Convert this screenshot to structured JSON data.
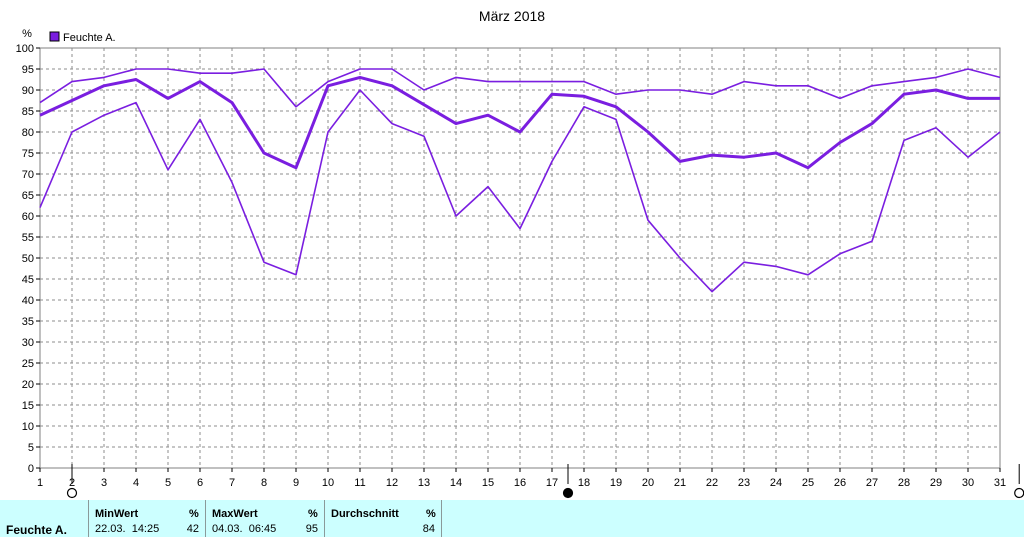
{
  "chart_data": {
    "type": "line",
    "title": "März 2018",
    "ylabel": "%",
    "ylim": [
      0,
      100
    ],
    "yticks": [
      0,
      5,
      10,
      15,
      20,
      25,
      30,
      35,
      40,
      45,
      50,
      55,
      60,
      65,
      70,
      75,
      80,
      85,
      90,
      95,
      100
    ],
    "x": [
      1,
      2,
      3,
      4,
      5,
      6,
      7,
      8,
      9,
      10,
      11,
      12,
      13,
      14,
      15,
      16,
      17,
      18,
      19,
      20,
      21,
      22,
      23,
      24,
      25,
      26,
      27,
      28,
      29,
      30,
      31
    ],
    "xtick_labels": [
      "1",
      "2",
      "3",
      "4",
      "5",
      "6",
      "7",
      "8",
      "9",
      "10",
      "11",
      "12",
      "13",
      "14",
      "15",
      "16",
      "17",
      "18",
      "19",
      "20",
      "21",
      "22",
      "23",
      "24",
      "25",
      "26",
      "27",
      "28",
      "29",
      "30",
      "31"
    ],
    "legend": {
      "label": "Feuchte A.",
      "color": "#7a1ee0",
      "position": "top-left"
    },
    "grid": true,
    "series": [
      {
        "role": "max",
        "color": "#7a1ee0",
        "values": [
          87,
          92,
          93,
          95,
          95,
          94,
          94,
          95,
          86,
          92,
          95,
          95,
          90,
          93,
          92,
          92,
          92,
          92,
          89,
          90,
          90,
          89,
          92,
          91,
          91,
          88,
          91,
          92,
          93,
          95,
          93
        ]
      },
      {
        "role": "avg",
        "color": "#7a1ee0",
        "values": [
          84,
          87.5,
          91,
          92.5,
          88,
          92,
          87,
          75,
          71.5,
          91,
          93,
          91,
          86.5,
          82,
          84,
          80,
          89,
          88.5,
          86,
          80,
          73,
          74.5,
          74,
          75,
          71.5,
          77.5,
          82,
          89,
          90,
          88,
          88
        ]
      },
      {
        "role": "min",
        "color": "#7a1ee0",
        "values": [
          62,
          80,
          84,
          87,
          71,
          83,
          68,
          49,
          46,
          80,
          90,
          82,
          79,
          60,
          67,
          57,
          73,
          86,
          83,
          59,
          50,
          42,
          49,
          48,
          46,
          51,
          54,
          78,
          81,
          74,
          80
        ]
      }
    ],
    "markers": [
      {
        "x": 2,
        "symbol": "open-circle"
      },
      {
        "x": 17.5,
        "symbol": "filled-circle"
      },
      {
        "x": 31.6,
        "symbol": "open-circle"
      }
    ]
  },
  "footer": {
    "row_label": "Feuchte A.",
    "min": {
      "header": "MinWert",
      "unit": "%",
      "time": "22.03.  14:25",
      "value": "42"
    },
    "max": {
      "header": "MaxWert",
      "unit": "%",
      "time": "04.03.  06:45",
      "value": "95"
    },
    "avg": {
      "header": "Durchschnitt",
      "unit": "%",
      "value": "84"
    }
  }
}
